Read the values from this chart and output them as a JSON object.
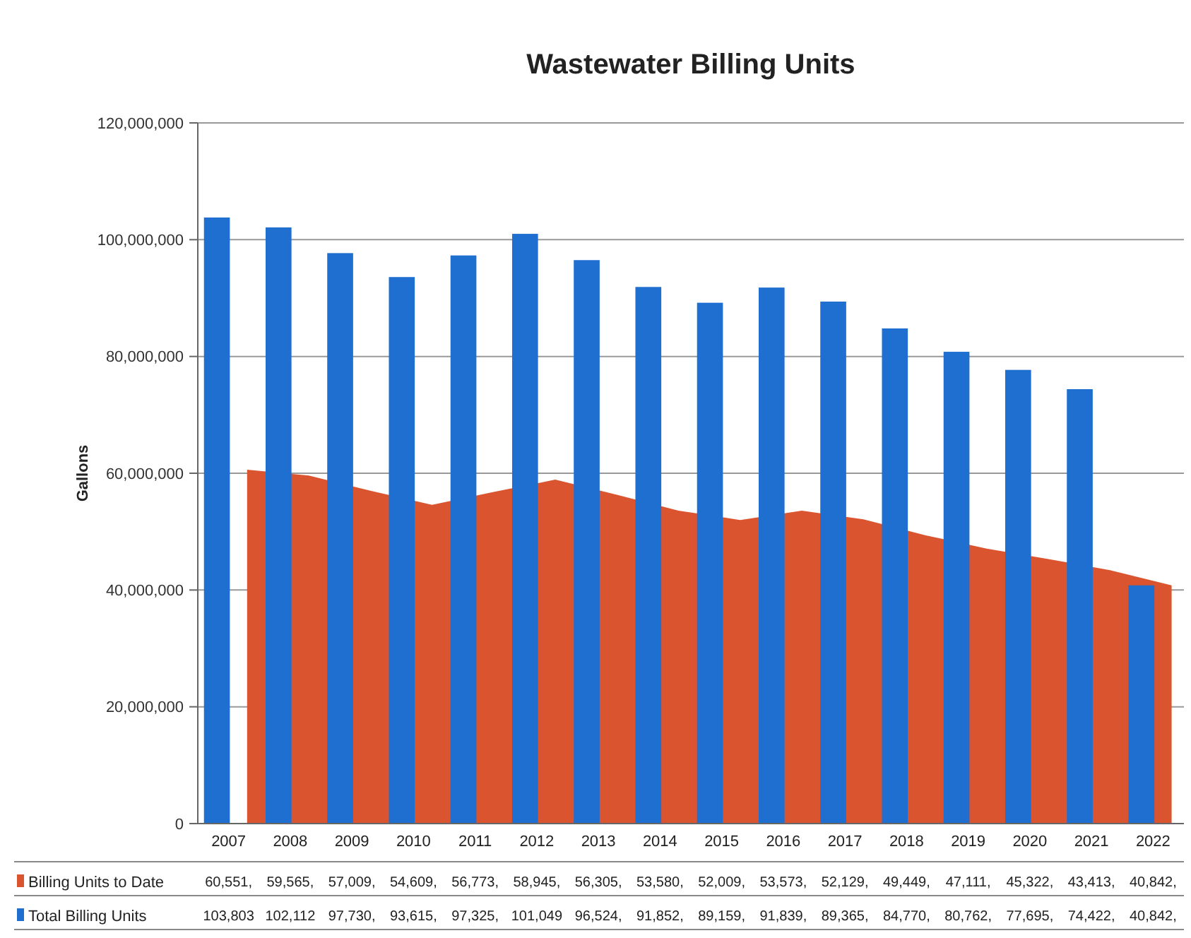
{
  "chart_data": {
    "type": "bar",
    "title": "Wastewater Billing Units",
    "ylabel": "Gallons",
    "categories": [
      "2007",
      "2008",
      "2009",
      "2010",
      "2011",
      "2012",
      "2013",
      "2014",
      "2015",
      "2016",
      "2017",
      "2018",
      "2019",
      "2020",
      "2021",
      "2022"
    ],
    "series": [
      {
        "name": "Billing Units to Date",
        "type": "area",
        "color": "#d9542f",
        "values": [
          60600000,
          59600000,
          57000000,
          54600000,
          56800000,
          58900000,
          56300000,
          53600000,
          52000000,
          53600000,
          52100000,
          49400000,
          47100000,
          45300000,
          43400000,
          40800000
        ]
      },
      {
        "name": "Total Billing Units",
        "color": "#1f6fd1",
        "values": [
          103800000,
          102100000,
          97700000,
          93600000,
          97300000,
          101000000,
          96500000,
          91900000,
          89200000,
          91800000,
          89400000,
          84800000,
          80800000,
          77700000,
          74400000,
          40800000
        ]
      }
    ],
    "annotations": [
      "60,551,",
      "59,565,",
      "57,009,",
      "54,609,",
      "56,773,",
      "58,945,",
      "56,305,",
      "53,580,",
      "52,009,",
      "53,573,",
      "52,129,",
      "49,449,",
      "47,111,",
      "45,322,",
      "43,413,",
      "40,842,",
      "103,803",
      "102,112",
      "97,730,",
      "93,615,",
      "97,325,",
      "101,049",
      "96,524,",
      "91,852,",
      "89,159,",
      "91,839,",
      "89,365,",
      "84,770,",
      "80,762,",
      "77,695,",
      "74,422,",
      "40,842,"
    ],
    "ylim": [
      0,
      120000000
    ],
    "yticks": [
      {
        "value": 0,
        "label": "0"
      },
      {
        "value": 20000000,
        "label": "20,000,000"
      },
      {
        "value": 40000000,
        "label": "40,000,000"
      },
      {
        "value": 60000000,
        "label": "60,000,000"
      },
      {
        "value": 80000000,
        "label": "80,000,000"
      },
      {
        "value": 100000000,
        "label": "100,000,000"
      },
      {
        "value": 120000000,
        "label": "120,000,000"
      }
    ],
    "grid": "y",
    "legend": "bottom"
  }
}
